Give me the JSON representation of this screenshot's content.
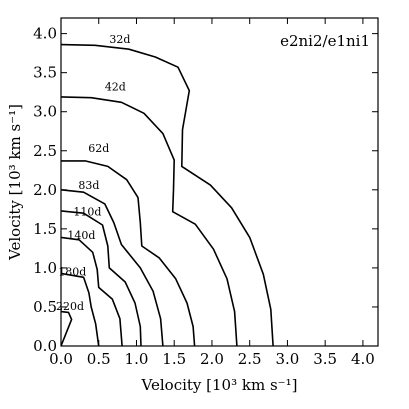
{
  "chart_data": {
    "type": "line",
    "title": "e2ni2/e1ni1",
    "xlabel": "Velocity [10³ km s⁻¹]",
    "ylabel": "Velocity [10³ km s⁻¹]",
    "xlim": [
      0.0,
      4.2
    ],
    "ylim": [
      0.0,
      4.2
    ],
    "xticks": [
      "0.0",
      "0.5",
      "1.0",
      "1.5",
      "2.0",
      "2.5",
      "3.0",
      "3.5",
      "4.0"
    ],
    "yticks": [
      "0.0",
      "0.5",
      "1.0",
      "1.5",
      "2.0",
      "2.5",
      "3.0",
      "3.5",
      "4.0"
    ],
    "grid": false,
    "series": [
      {
        "name": "32d",
        "label_at": [
          0.78,
          3.92
        ],
        "points": [
          [
            0.0,
            3.86
          ],
          [
            0.45,
            3.85
          ],
          [
            0.9,
            3.8
          ],
          [
            1.25,
            3.7
          ],
          [
            1.55,
            3.57
          ],
          [
            1.7,
            3.27
          ],
          [
            1.61,
            2.77
          ],
          [
            1.6,
            2.3
          ],
          [
            1.98,
            2.06
          ],
          [
            2.26,
            1.77
          ],
          [
            2.5,
            1.39
          ],
          [
            2.68,
            0.92
          ],
          [
            2.78,
            0.47
          ],
          [
            2.81,
            0.0
          ]
        ]
      },
      {
        "name": "42d",
        "label_at": [
          0.72,
          3.31
        ],
        "points": [
          [
            0.0,
            3.19
          ],
          [
            0.4,
            3.18
          ],
          [
            0.8,
            3.12
          ],
          [
            1.1,
            2.98
          ],
          [
            1.35,
            2.72
          ],
          [
            1.5,
            2.38
          ],
          [
            1.49,
            2.0
          ],
          [
            1.48,
            1.72
          ],
          [
            1.78,
            1.56
          ],
          [
            2.02,
            1.24
          ],
          [
            2.2,
            0.86
          ],
          [
            2.3,
            0.44
          ],
          [
            2.33,
            0.0
          ]
        ]
      },
      {
        "name": "62d",
        "label_at": [
          0.5,
          2.52
        ],
        "points": [
          [
            0.0,
            2.37
          ],
          [
            0.32,
            2.37
          ],
          [
            0.62,
            2.3
          ],
          [
            0.87,
            2.13
          ],
          [
            1.02,
            1.9
          ],
          [
            1.05,
            1.58
          ],
          [
            1.07,
            1.28
          ],
          [
            1.3,
            1.13
          ],
          [
            1.52,
            0.86
          ],
          [
            1.67,
            0.55
          ],
          [
            1.75,
            0.25
          ],
          [
            1.77,
            0.0
          ]
        ]
      },
      {
        "name": "83d",
        "label_at": [
          0.37,
          2.05
        ],
        "points": [
          [
            0.0,
            2.0
          ],
          [
            0.3,
            1.97
          ],
          [
            0.58,
            1.82
          ],
          [
            0.7,
            1.58
          ],
          [
            0.8,
            1.3
          ],
          [
            1.05,
            1.0
          ],
          [
            1.22,
            0.7
          ],
          [
            1.32,
            0.35
          ],
          [
            1.35,
            0.0
          ]
        ]
      },
      {
        "name": "110d",
        "label_at": [
          0.35,
          1.71
        ],
        "points": [
          [
            0.0,
            1.73
          ],
          [
            0.3,
            1.7
          ],
          [
            0.55,
            1.55
          ],
          [
            0.62,
            1.28
          ],
          [
            0.64,
            1.0
          ],
          [
            0.85,
            0.82
          ],
          [
            0.98,
            0.55
          ],
          [
            1.05,
            0.25
          ],
          [
            1.06,
            0.0
          ]
        ]
      },
      {
        "name": "140d",
        "label_at": [
          0.27,
          1.41
        ],
        "points": [
          [
            0.0,
            1.39
          ],
          [
            0.24,
            1.36
          ],
          [
            0.42,
            1.2
          ],
          [
            0.48,
            0.98
          ],
          [
            0.5,
            0.75
          ],
          [
            0.68,
            0.6
          ],
          [
            0.78,
            0.35
          ],
          [
            0.81,
            0.0
          ]
        ]
      },
      {
        "name": "180d",
        "label_at": [
          0.15,
          0.94
        ],
        "points": [
          [
            0.0,
            0.93
          ],
          [
            0.3,
            0.88
          ],
          [
            0.37,
            0.68
          ],
          [
            0.4,
            0.5
          ],
          [
            0.46,
            0.28
          ],
          [
            0.5,
            0.0
          ]
        ]
      },
      {
        "name": "220d",
        "label_at": [
          0.12,
          0.5
        ],
        "points": [
          [
            0.0,
            0.44
          ],
          [
            0.1,
            0.43
          ],
          [
            0.14,
            0.34
          ],
          [
            0.0,
            0.0
          ]
        ]
      }
    ]
  }
}
